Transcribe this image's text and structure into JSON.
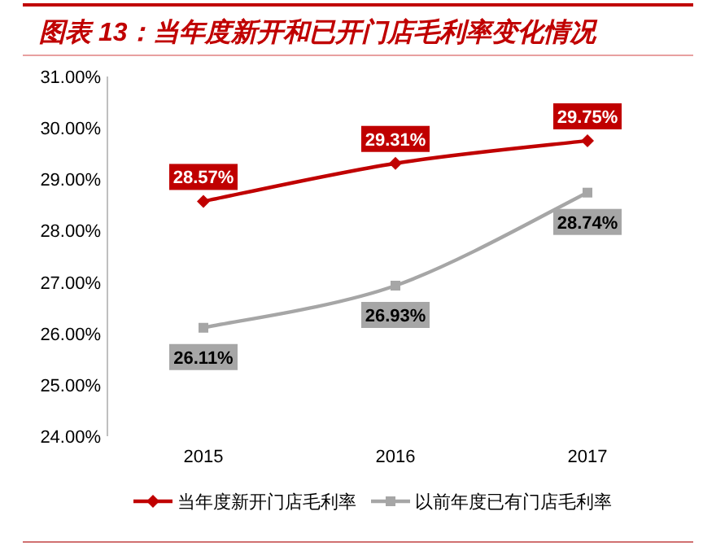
{
  "chart_data": {
    "type": "line",
    "title": "图表 13：当年度新开和已开门店毛利率变化情况",
    "categories": [
      "2015",
      "2016",
      "2017"
    ],
    "ylim": [
      24,
      31
    ],
    "yticks": [
      {
        "value": 24,
        "label": "24.00%"
      },
      {
        "value": 25,
        "label": "25.00%"
      },
      {
        "value": 26,
        "label": "26.00%"
      },
      {
        "value": 27,
        "label": "27.00%"
      },
      {
        "value": 28,
        "label": "28.00%"
      },
      {
        "value": 29,
        "label": "29.00%"
      },
      {
        "value": 30,
        "label": "30.00%"
      },
      {
        "value": 31,
        "label": "31.00%"
      }
    ],
    "series": [
      {
        "name": "当年度新开门店毛利率",
        "color": "#c00000",
        "marker": "diamond",
        "values": [
          28.57,
          29.31,
          29.75
        ],
        "value_labels": [
          "28.57%",
          "29.31%",
          "29.75%"
        ]
      },
      {
        "name": "以前年度已有门店毛利率",
        "color": "#a6a6a6",
        "marker": "square",
        "values": [
          26.11,
          26.93,
          28.74
        ],
        "value_labels": [
          "26.11%",
          "26.93%",
          "28.74%"
        ]
      }
    ],
    "grid": false,
    "legend": "bottom"
  }
}
